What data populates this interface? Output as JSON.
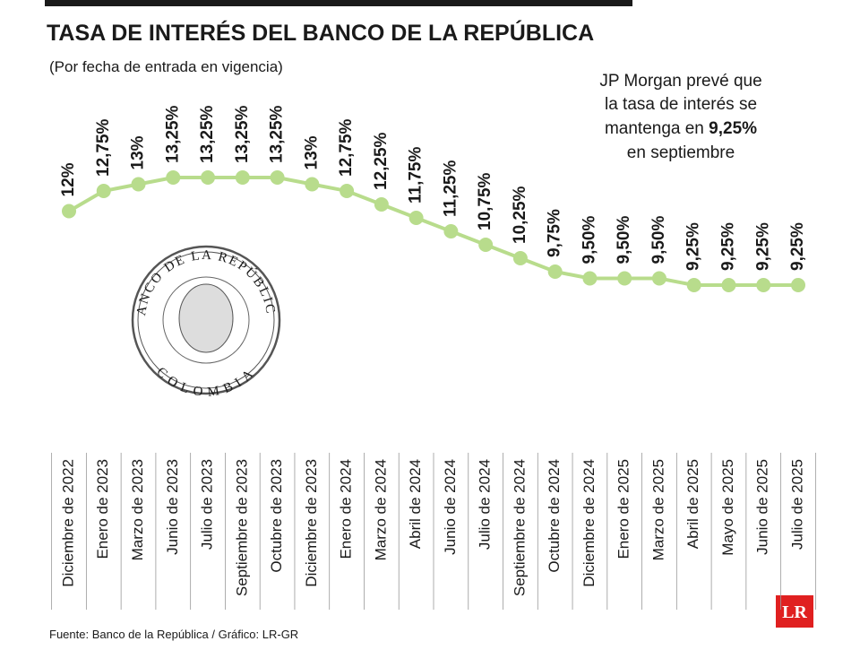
{
  "chart_data": {
    "type": "line",
    "title": "TASA DE INTERÉS DEL BANCO DE LA REPÚBLICA",
    "subtitle": "(Por fecha de entrada en vigencia)",
    "categories": [
      "Diciembre de 2022",
      "Enero de 2023",
      "Marzo de 2023",
      "Junio de 2023",
      "Julio de 2023",
      "Septiembre de 2023",
      "Octubre de 2023",
      "Diciembre de 2023",
      "Enero de 2024",
      "Marzo de 2024",
      "Abril de 2024",
      "Junio de 2024",
      "Julio de 2024",
      "Septiembre de 2024",
      "Octubre de 2024",
      "Diciembre de 2024",
      "Enero de 2025",
      "Marzo de 2025",
      "Abril de 2025",
      "Mayo de 2025",
      "Junio de 2025",
      "Julio de 2025"
    ],
    "values": [
      12,
      12.75,
      13,
      13.25,
      13.25,
      13.25,
      13.25,
      13,
      12.75,
      12.25,
      11.75,
      11.25,
      10.75,
      10.25,
      9.75,
      9.5,
      9.5,
      9.5,
      9.25,
      9.25,
      9.25,
      9.25
    ],
    "value_labels": [
      "12%",
      "12,75%",
      "13%",
      "13,25%",
      "13,25%",
      "13,25%",
      "13,25%",
      "13%",
      "12,75%",
      "12,25%",
      "11,75%",
      "11,25%",
      "10,75%",
      "10,25%",
      "9,75%",
      "9,50%",
      "9,50%",
      "9,50%",
      "9,25%",
      "9,25%",
      "9,25%",
      "9,25%"
    ],
    "color": "#b8dc8c",
    "annotation": {
      "lines": [
        "JP Morgan prevé que",
        "la tasa de interés se",
        "mantenga en",
        "en septiembre"
      ],
      "highlight": "9,25%"
    },
    "seal": {
      "top": "BANCO DE LA REPÚBLICA",
      "bottom": "COLOMBIA"
    },
    "source": "Fuente: Banco de la República / Gráfico: LR-GR",
    "logo": "LR"
  }
}
